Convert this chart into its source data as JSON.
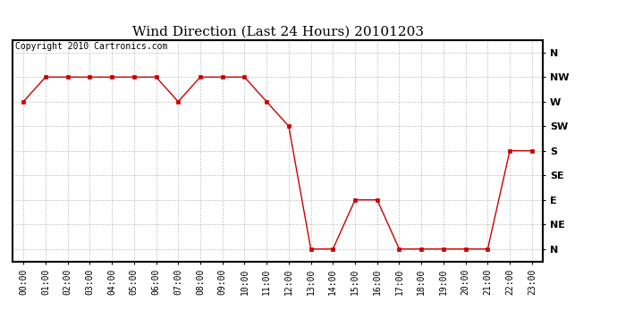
{
  "title": "Wind Direction (Last 24 Hours) 20101203",
  "copyright_text": "Copyright 2010 Cartronics.com",
  "x_labels": [
    "00:00",
    "01:00",
    "02:00",
    "03:00",
    "04:00",
    "05:00",
    "06:00",
    "07:00",
    "08:00",
    "09:00",
    "10:00",
    "11:00",
    "12:00",
    "13:00",
    "14:00",
    "15:00",
    "16:00",
    "17:00",
    "18:00",
    "19:00",
    "20:00",
    "21:00",
    "22:00",
    "23:00"
  ],
  "y_labels": [
    "N",
    "NE",
    "E",
    "SE",
    "S",
    "SW",
    "W",
    "NW",
    "N"
  ],
  "y_values": [
    0,
    1,
    2,
    3,
    4,
    5,
    6,
    7,
    8
  ],
  "wind_data": [
    6,
    7,
    7,
    7,
    7,
    7,
    7,
    6,
    7,
    7,
    7,
    6,
    5,
    0,
    0,
    2,
    2,
    0,
    0,
    0,
    0,
    0,
    4,
    4
  ],
  "line_color": "#cc0000",
  "marker": "s",
  "marker_size": 3,
  "bg_color": "#ffffff",
  "grid_color": "#bbbbbb",
  "title_fontsize": 11,
  "copyright_fontsize": 7,
  "tick_fontsize": 7,
  "y_label_fontsize": 8
}
